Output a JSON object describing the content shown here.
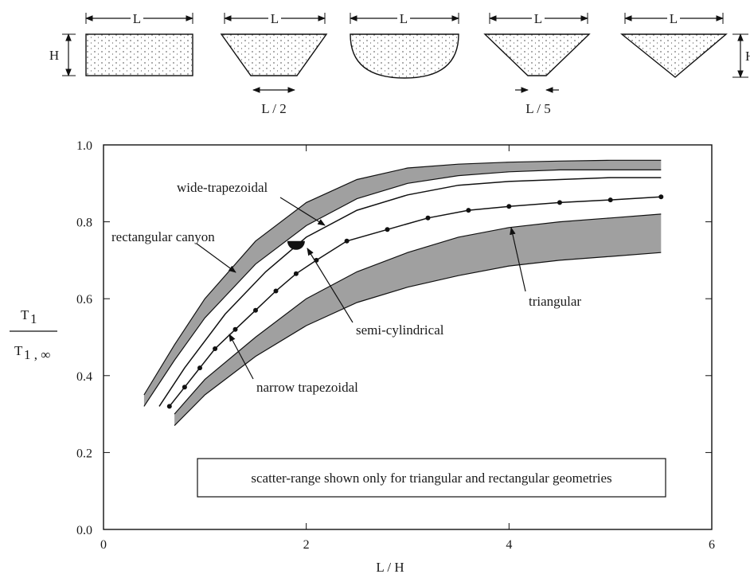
{
  "chart_data": {
    "type": "line",
    "xlabel": "L / H",
    "ylabel_numerator": "T",
    "ylabel_numerator_sub": "1",
    "ylabel_denominator": "T",
    "ylabel_denominator_sub": "1 , ∞",
    "xlim": [
      0,
      6
    ],
    "ylim": [
      0,
      1
    ],
    "x_ticks": [
      "0",
      "2",
      "4",
      "6"
    ],
    "y_ticks": [
      "0.0",
      "0.2",
      "0.4",
      "0.6",
      "0.8",
      "1.0"
    ],
    "grid": false,
    "note_box": "scatter-range shown only for triangular  and rectangular geometries",
    "series": [
      {
        "name": "rectangular canyon",
        "band": true,
        "x": [
          0.4,
          0.7,
          1.0,
          1.5,
          2.0,
          2.5,
          3.0,
          3.5,
          4.0,
          4.5,
          5.0,
          5.5
        ],
        "lower": [
          0.32,
          0.44,
          0.55,
          0.69,
          0.79,
          0.86,
          0.9,
          0.92,
          0.93,
          0.935,
          0.935,
          0.935
        ],
        "upper": [
          0.35,
          0.48,
          0.6,
          0.75,
          0.85,
          0.91,
          0.94,
          0.95,
          0.955,
          0.958,
          0.96,
          0.96
        ]
      },
      {
        "name": "wide-trapezoidal",
        "x": [
          0.55,
          0.8,
          1.2,
          1.6,
          2.0,
          2.5,
          3.0,
          3.5,
          4.0,
          4.5,
          5.0,
          5.5
        ],
        "y": [
          0.32,
          0.42,
          0.56,
          0.67,
          0.76,
          0.83,
          0.87,
          0.895,
          0.905,
          0.91,
          0.915,
          0.915
        ]
      },
      {
        "name": "semi-cylindrical",
        "x": [
          1.9
        ],
        "y": [
          0.75
        ]
      },
      {
        "name": "narrow trapezoidal",
        "markers": true,
        "x": [
          0.65,
          0.8,
          0.95,
          1.1,
          1.3,
          1.5,
          1.7,
          1.9,
          2.1,
          2.4,
          2.8,
          3.2,
          3.6,
          4.0,
          4.5,
          5.0,
          5.5
        ],
        "y": [
          0.32,
          0.37,
          0.42,
          0.47,
          0.52,
          0.57,
          0.62,
          0.665,
          0.7,
          0.75,
          0.78,
          0.81,
          0.83,
          0.84,
          0.85,
          0.857,
          0.865
        ]
      },
      {
        "name": "triangular",
        "band": true,
        "x": [
          0.7,
          1.0,
          1.5,
          2.0,
          2.5,
          3.0,
          3.5,
          4.0,
          4.5,
          5.0,
          5.5
        ],
        "lower": [
          0.27,
          0.35,
          0.45,
          0.53,
          0.59,
          0.63,
          0.66,
          0.685,
          0.7,
          0.71,
          0.72
        ],
        "upper": [
          0.3,
          0.39,
          0.5,
          0.6,
          0.67,
          0.72,
          0.76,
          0.785,
          0.8,
          0.81,
          0.82
        ]
      }
    ],
    "annotations": [
      {
        "text": "rectangular canyon"
      },
      {
        "text": "wide-trapezoidal"
      },
      {
        "text": "semi-cylindrical"
      },
      {
        "text": "narrow trapezoidal"
      },
      {
        "text": "triangular"
      }
    ]
  },
  "schematics": {
    "width_label": "L",
    "height_label": "H",
    "narrow_trap_bottom": "L / 2",
    "wide_trap_bottom": "L / 5"
  }
}
